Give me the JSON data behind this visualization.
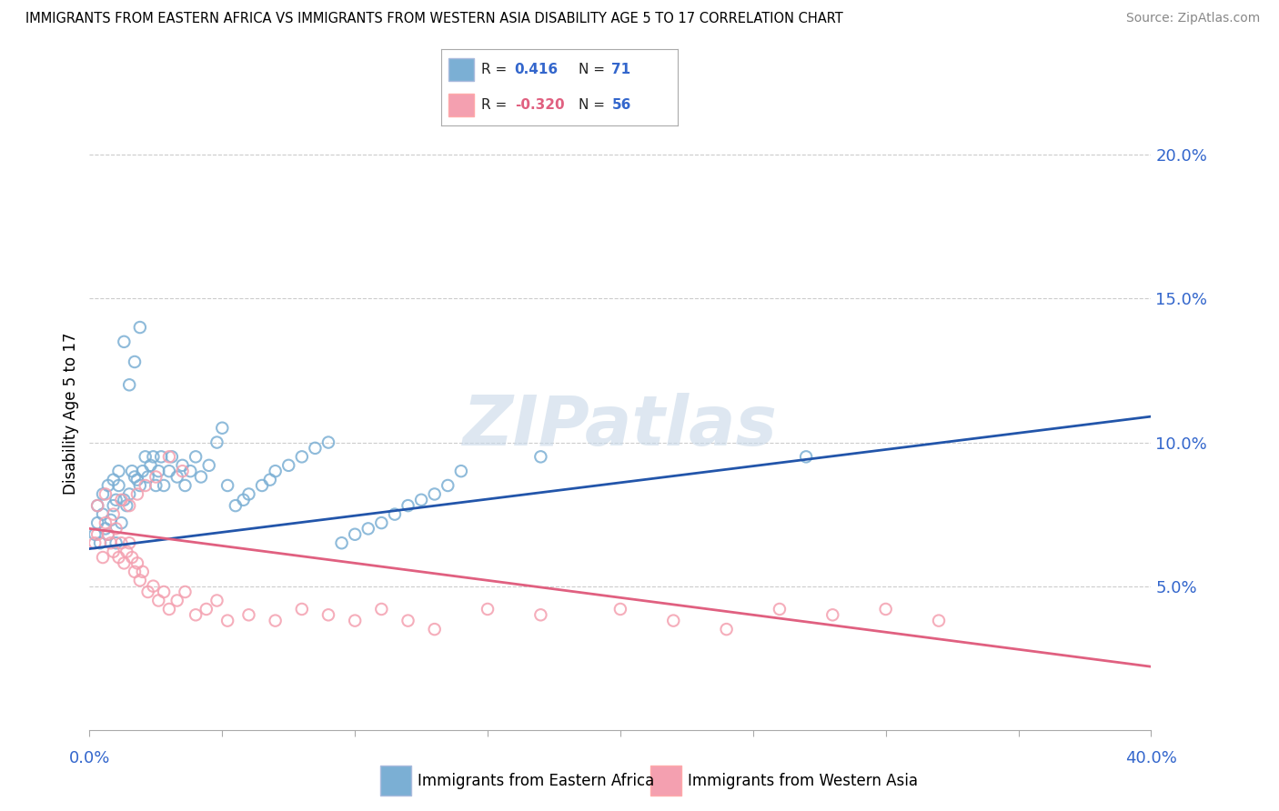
{
  "title": "IMMIGRANTS FROM EASTERN AFRICA VS IMMIGRANTS FROM WESTERN ASIA DISABILITY AGE 5 TO 17 CORRELATION CHART",
  "source": "Source: ZipAtlas.com",
  "xlim": [
    0.0,
    0.4
  ],
  "ylim": [
    0.0,
    0.22
  ],
  "yticks": [
    0.0,
    0.05,
    0.1,
    0.15,
    0.2
  ],
  "ytick_labels": [
    "",
    "5.0%",
    "10.0%",
    "15.0%",
    "20.0%"
  ],
  "blue_R": "0.416",
  "blue_N": "71",
  "pink_R": "-0.320",
  "pink_N": "56",
  "blue_color": "#7BAFD4",
  "pink_color": "#F4A0B0",
  "blue_line_color": "#2255AA",
  "pink_line_color": "#E06080",
  "blue_trend_x0": 0.0,
  "blue_trend_x1": 0.4,
  "blue_trend_y0": 0.063,
  "blue_trend_y1": 0.109,
  "pink_trend_x0": 0.0,
  "pink_trend_x1": 0.4,
  "pink_trend_y0": 0.07,
  "pink_trend_y1": 0.022,
  "legend_blue_label": "Immigrants from Eastern Africa",
  "legend_pink_label": "Immigrants from Western Asia",
  "blue_scatter_x": [
    0.002,
    0.003,
    0.004,
    0.005,
    0.006,
    0.007,
    0.008,
    0.009,
    0.01,
    0.01,
    0.011,
    0.012,
    0.013,
    0.014,
    0.015,
    0.016,
    0.017,
    0.018,
    0.019,
    0.02,
    0.021,
    0.022,
    0.023,
    0.024,
    0.025,
    0.026,
    0.027,
    0.028,
    0.03,
    0.031,
    0.033,
    0.035,
    0.036,
    0.038,
    0.04,
    0.042,
    0.045,
    0.048,
    0.05,
    0.052,
    0.055,
    0.058,
    0.06,
    0.065,
    0.068,
    0.07,
    0.075,
    0.08,
    0.085,
    0.09,
    0.095,
    0.1,
    0.105,
    0.11,
    0.115,
    0.12,
    0.125,
    0.13,
    0.135,
    0.14,
    0.003,
    0.005,
    0.007,
    0.009,
    0.011,
    0.013,
    0.015,
    0.017,
    0.019,
    0.17,
    0.27
  ],
  "blue_scatter_y": [
    0.068,
    0.072,
    0.065,
    0.075,
    0.07,
    0.068,
    0.073,
    0.078,
    0.08,
    0.065,
    0.085,
    0.072,
    0.08,
    0.078,
    0.082,
    0.09,
    0.088,
    0.087,
    0.085,
    0.09,
    0.095,
    0.088,
    0.092,
    0.095,
    0.085,
    0.09,
    0.095,
    0.085,
    0.09,
    0.095,
    0.088,
    0.092,
    0.085,
    0.09,
    0.095,
    0.088,
    0.092,
    0.1,
    0.105,
    0.085,
    0.078,
    0.08,
    0.082,
    0.085,
    0.087,
    0.09,
    0.092,
    0.095,
    0.098,
    0.1,
    0.065,
    0.068,
    0.07,
    0.072,
    0.075,
    0.078,
    0.08,
    0.082,
    0.085,
    0.09,
    0.078,
    0.082,
    0.085,
    0.087,
    0.09,
    0.135,
    0.12,
    0.128,
    0.14,
    0.095,
    0.095
  ],
  "pink_scatter_x": [
    0.002,
    0.003,
    0.005,
    0.006,
    0.007,
    0.008,
    0.009,
    0.01,
    0.011,
    0.012,
    0.013,
    0.014,
    0.015,
    0.016,
    0.017,
    0.018,
    0.019,
    0.02,
    0.022,
    0.024,
    0.026,
    0.028,
    0.03,
    0.033,
    0.036,
    0.04,
    0.044,
    0.048,
    0.052,
    0.06,
    0.07,
    0.08,
    0.09,
    0.1,
    0.11,
    0.12,
    0.13,
    0.15,
    0.17,
    0.2,
    0.22,
    0.24,
    0.26,
    0.28,
    0.3,
    0.32,
    0.003,
    0.006,
    0.009,
    0.012,
    0.015,
    0.018,
    0.021,
    0.025,
    0.03,
    0.035
  ],
  "pink_scatter_y": [
    0.065,
    0.068,
    0.06,
    0.072,
    0.068,
    0.065,
    0.062,
    0.07,
    0.06,
    0.065,
    0.058,
    0.062,
    0.065,
    0.06,
    0.055,
    0.058,
    0.052,
    0.055,
    0.048,
    0.05,
    0.045,
    0.048,
    0.042,
    0.045,
    0.048,
    0.04,
    0.042,
    0.045,
    0.038,
    0.04,
    0.038,
    0.042,
    0.04,
    0.038,
    0.042,
    0.038,
    0.035,
    0.042,
    0.04,
    0.042,
    0.038,
    0.035,
    0.042,
    0.04,
    0.042,
    0.038,
    0.078,
    0.082,
    0.075,
    0.08,
    0.078,
    0.082,
    0.085,
    0.088,
    0.095,
    0.09
  ]
}
